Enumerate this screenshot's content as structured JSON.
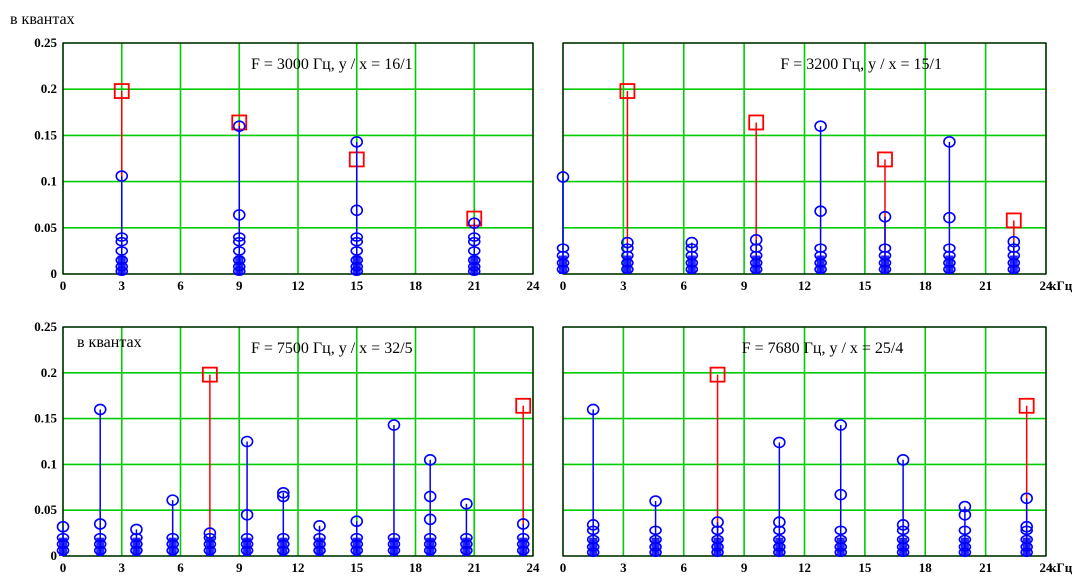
{
  "figure": {
    "top_ylabel": "в квантах",
    "colors": {
      "grid": "#00cc00",
      "signal": "#ff0000",
      "spurious": "#0000ff",
      "frame": "#000000"
    }
  },
  "chart_data": [
    {
      "type": "stem",
      "title": "F = 3000 Гц, y / x = 16/1",
      "xlim": [
        0,
        24
      ],
      "ylim": [
        0,
        0.25
      ],
      "x_ticks": [
        "0",
        "3",
        "6",
        "9",
        "12",
        "15",
        "18",
        "21",
        "24"
      ],
      "y_ticks": [
        "0",
        "0.05",
        "0.1",
        "0.15",
        "0.2",
        "0.25"
      ],
      "x_unit": "",
      "series": [
        {
          "marker": "square",
          "color": "#ff0000",
          "x": [
            3,
            9,
            15,
            21
          ],
          "y": [
            0.198,
            0.164,
            0.124,
            0.06
          ]
        },
        {
          "marker": "circle",
          "color": "#0000ff",
          "x": [
            3,
            9,
            15,
            21
          ],
          "y": [
            0.106,
            0.16,
            0.143,
            0.055
          ],
          "cluster_y": [
            0.04,
            0.035,
            0.025,
            0.015,
            0.008,
            0.003
          ]
        },
        {
          "marker": "circle",
          "color": "#0000ff",
          "x": [
            9,
            15
          ],
          "y": [
            0.064,
            0.069
          ]
        }
      ]
    },
    {
      "type": "stem",
      "title": "F = 3200 Гц, y / x = 15/1",
      "xlim": [
        0,
        24
      ],
      "ylim": [
        0,
        0.25
      ],
      "x_ticks": [
        "0",
        "3",
        "6",
        "9",
        "12",
        "15",
        "18",
        "21",
        "24"
      ],
      "y_ticks": [],
      "x_unit": "кГц",
      "series": [
        {
          "marker": "square",
          "color": "#ff0000",
          "x": [
            3.2,
            9.6,
            16,
            22.4
          ],
          "y": [
            0.198,
            0.164,
            0.124,
            0.058
          ]
        },
        {
          "marker": "circle",
          "color": "#0000ff",
          "x": [
            0,
            3.2,
            6.4,
            9.6,
            12.8,
            16,
            19.2,
            22.4
          ],
          "y": [
            0.105,
            0.034,
            0.034,
            0.037,
            0.16,
            0.062,
            0.143,
            0.035
          ],
          "cluster_y": [
            0.028,
            0.02,
            0.012,
            0.005
          ]
        },
        {
          "marker": "circle",
          "color": "#0000ff",
          "x": [
            12.8,
            19.2
          ],
          "y": [
            0.068,
            0.061
          ]
        }
      ]
    },
    {
      "type": "stem",
      "title": "F = 7500 Гц, y / x = 32/5",
      "ylabel": "в квантах",
      "xlim": [
        0,
        24
      ],
      "ylim": [
        0,
        0.25
      ],
      "x_ticks": [
        "0",
        "3",
        "6",
        "9",
        "12",
        "15",
        "18",
        "21",
        "24"
      ],
      "y_ticks": [
        "0",
        "0.05",
        "0.1",
        "0.15",
        "0.2",
        "0.25"
      ],
      "x_unit": "",
      "series": [
        {
          "marker": "square",
          "color": "#ff0000",
          "x": [
            7.5,
            23.5
          ],
          "y": [
            0.198,
            0.164
          ]
        },
        {
          "marker": "circle",
          "color": "#0000ff",
          "x": [
            0,
            1.9,
            3.75,
            5.6,
            7.5,
            9.4,
            11.25,
            13.1,
            15,
            16.9,
            18.75,
            20.6,
            23.5
          ],
          "y": [
            0.032,
            0.16,
            0.029,
            0.061,
            0.025,
            0.125,
            0.069,
            0.033,
            0.038,
            0.143,
            0.105,
            0.057,
            0.035
          ],
          "cluster_y": [
            0.02,
            0.013,
            0.006
          ]
        },
        {
          "marker": "circle",
          "color": "#0000ff",
          "x": [
            1.9,
            9.4,
            11.25,
            18.75,
            18.75
          ],
          "y": [
            0.035,
            0.045,
            0.065,
            0.065,
            0.04
          ]
        }
      ]
    },
    {
      "type": "stem",
      "title": "F = 7680 Гц, y / x = 25/4",
      "xlim": [
        0,
        24
      ],
      "ylim": [
        0,
        0.25
      ],
      "x_ticks": [
        "0",
        "3",
        "6",
        "9",
        "12",
        "15",
        "18",
        "21",
        "24"
      ],
      "y_ticks": [],
      "x_unit": "кГц",
      "series": [
        {
          "marker": "square",
          "color": "#ff0000",
          "x": [
            7.68,
            23.04
          ],
          "y": [
            0.198,
            0.164
          ]
        },
        {
          "marker": "circle",
          "color": "#0000ff",
          "x": [
            1.5,
            4.6,
            7.68,
            10.75,
            13.8,
            16.9,
            19.97,
            23.04
          ],
          "y": [
            0.16,
            0.06,
            0.037,
            0.124,
            0.143,
            0.105,
            0.054,
            0.063
          ],
          "cluster_y": [
            0.028,
            0.018,
            0.01,
            0.004
          ]
        },
        {
          "marker": "circle",
          "color": "#0000ff",
          "x": [
            1.5,
            10.75,
            13.8,
            16.9,
            19.97,
            23.04
          ],
          "y": [
            0.034,
            0.037,
            0.067,
            0.034,
            0.045,
            0.032
          ]
        }
      ]
    }
  ]
}
